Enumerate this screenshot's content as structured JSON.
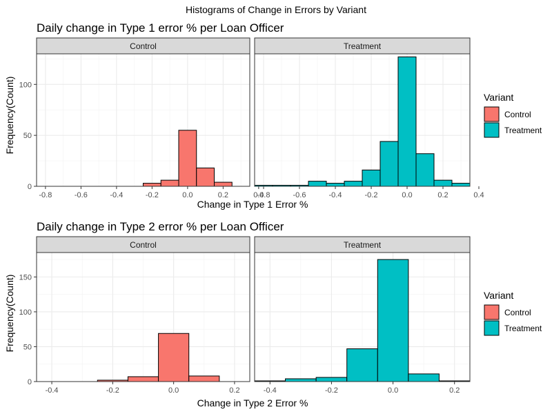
{
  "figure_title": "Histograms of Change in Errors by Variant",
  "chart_data": [
    {
      "type": "bar",
      "title": "Daily change in Type 1 error % per Loan Officer",
      "xlabel": "Change in Type 1 Error %",
      "ylabel": "Frequency(Count)",
      "xlim": [
        -0.85,
        0.35
      ],
      "ylim": [
        0,
        130
      ],
      "xticks": [
        "-0.8",
        "-0.6",
        "-0.4",
        "-0.2",
        "0.0",
        "0.2",
        "0.4"
      ],
      "yticks": [
        "0",
        "50",
        "100"
      ],
      "bin_width": 0.1,
      "grid": true,
      "legend": {
        "title": "Variant",
        "position": "right",
        "entries": [
          "Control",
          "Treatment"
        ]
      },
      "colors": {
        "Control": "#F8766D",
        "Treatment": "#00BFC4"
      },
      "panels": [
        {
          "name": "Control",
          "bin_centers": [
            -0.8,
            -0.7,
            -0.6,
            -0.5,
            -0.4,
            -0.3,
            -0.2,
            -0.1,
            0.0,
            0.1,
            0.2,
            0.3
          ],
          "values": [
            0,
            0,
            0,
            0,
            0,
            0,
            3,
            6,
            55,
            18,
            4,
            0
          ]
        },
        {
          "name": "Treatment",
          "bin_centers": [
            -0.8,
            -0.7,
            -0.6,
            -0.5,
            -0.4,
            -0.3,
            -0.2,
            -0.1,
            0.0,
            0.1,
            0.2,
            0.3
          ],
          "values": [
            1,
            1,
            1,
            5,
            3,
            5,
            16,
            44,
            127,
            32,
            6,
            3
          ]
        }
      ]
    },
    {
      "type": "bar",
      "title": "Daily change in Type 2 error % per Loan Officer",
      "xlabel": "Change in Type 2 Error %",
      "ylabel": "Frequency(Count)",
      "xlim": [
        -0.45,
        0.25
      ],
      "ylim": [
        0,
        185
      ],
      "xticks": [
        "-0.4",
        "-0.2",
        "0.0",
        "0.2"
      ],
      "yticks": [
        "0",
        "50",
        "100",
        "150"
      ],
      "bin_width": 0.1,
      "grid": true,
      "legend": {
        "title": "Variant",
        "position": "right",
        "entries": [
          "Control",
          "Treatment"
        ]
      },
      "colors": {
        "Control": "#F8766D",
        "Treatment": "#00BFC4"
      },
      "panels": [
        {
          "name": "Control",
          "bin_centers": [
            -0.4,
            -0.3,
            -0.2,
            -0.1,
            0.0,
            0.1,
            0.2
          ],
          "values": [
            0,
            0,
            2,
            7,
            69,
            8,
            0
          ]
        },
        {
          "name": "Treatment",
          "bin_centers": [
            -0.4,
            -0.3,
            -0.2,
            -0.1,
            0.0,
            0.1,
            0.2
          ],
          "values": [
            1,
            4,
            6,
            47,
            175,
            11,
            1
          ]
        }
      ]
    }
  ]
}
